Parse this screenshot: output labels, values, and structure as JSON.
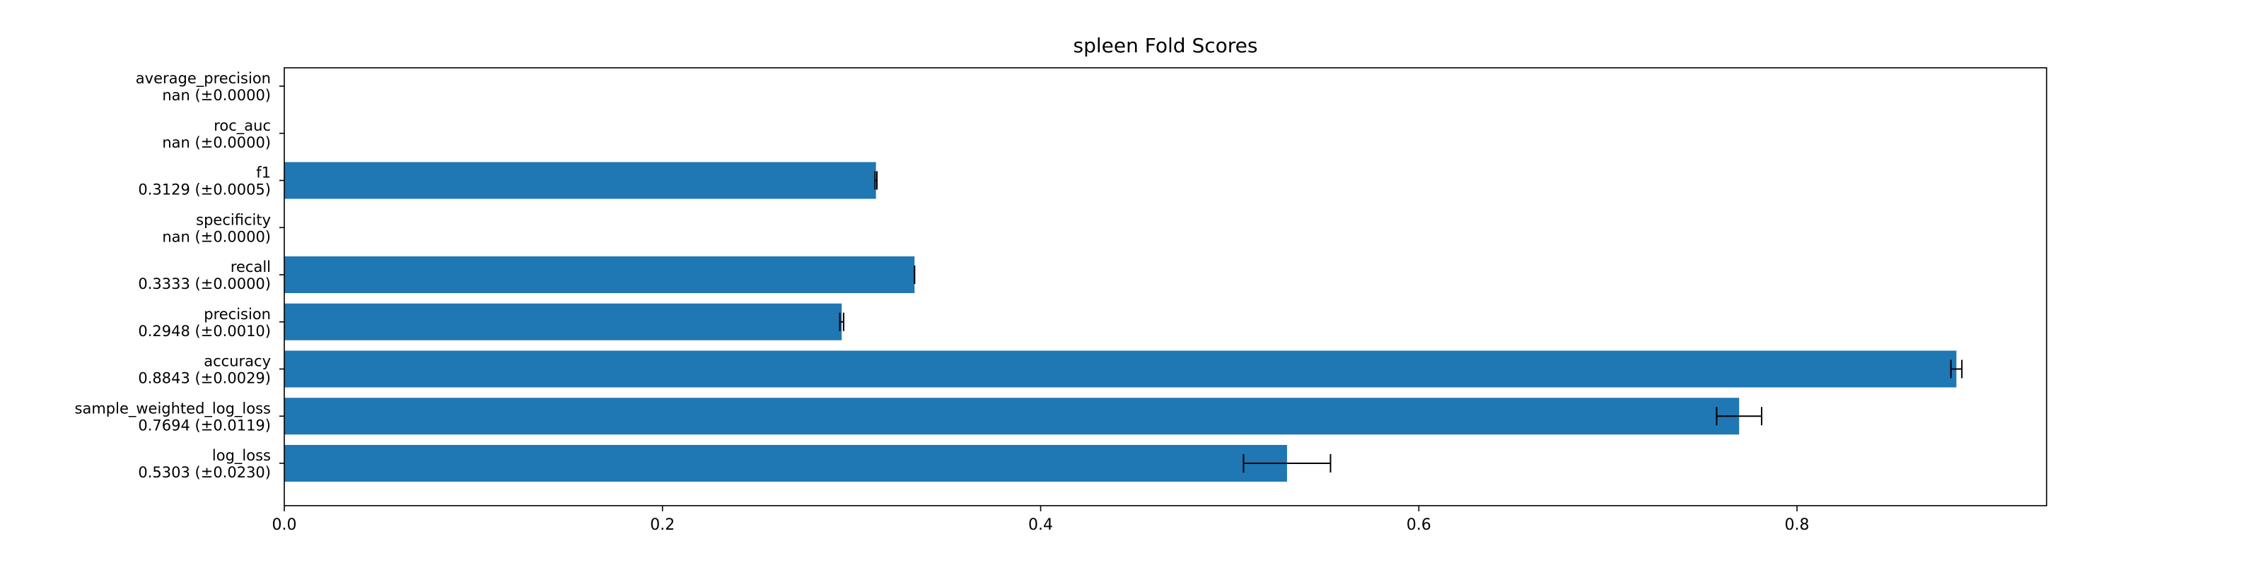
{
  "chart_data": {
    "type": "bar",
    "orientation": "horizontal",
    "title": "spleen Fold Scores",
    "xlabel": "",
    "ylabel": "",
    "xlim": [
      0,
      0.932
    ],
    "x_ticks": [
      {
        "value": 0.0,
        "label": "0.0"
      },
      {
        "value": 0.2,
        "label": "0.2"
      },
      {
        "value": 0.4,
        "label": "0.4"
      },
      {
        "value": 0.6,
        "label": "0.6"
      },
      {
        "value": 0.8,
        "label": "0.8"
      }
    ],
    "bar_color": "#1f77b4",
    "error_bar_color": "#000000",
    "grid": false,
    "categories": [
      {
        "name": "average_precision",
        "label": "nan (±0.0000)",
        "value": null,
        "err": 0.0
      },
      {
        "name": "roc_auc",
        "label": "nan (±0.0000)",
        "value": null,
        "err": 0.0
      },
      {
        "name": "f1",
        "label": "0.3129 (±0.0005)",
        "value": 0.3129,
        "err": 0.0005
      },
      {
        "name": "specificity",
        "label": "nan (±0.0000)",
        "value": null,
        "err": 0.0
      },
      {
        "name": "recall",
        "label": "0.3333 (±0.0000)",
        "value": 0.3333,
        "err": 0.0
      },
      {
        "name": "precision",
        "label": "0.2948 (±0.0010)",
        "value": 0.2948,
        "err": 0.001
      },
      {
        "name": "accuracy",
        "label": "0.8843 (±0.0029)",
        "value": 0.8843,
        "err": 0.0029
      },
      {
        "name": "sample_weighted_log_loss",
        "label": "0.7694 (±0.0119)",
        "value": 0.7694,
        "err": 0.0119
      },
      {
        "name": "log_loss",
        "label": "0.5303 (±0.0230)",
        "value": 0.5303,
        "err": 0.023
      }
    ]
  }
}
